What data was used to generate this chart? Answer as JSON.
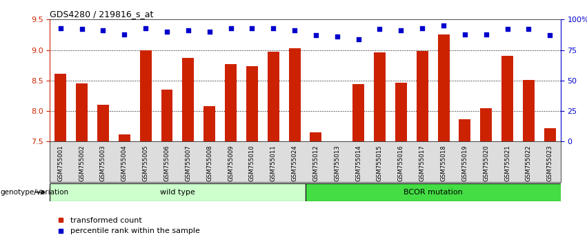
{
  "title": "GDS4280 / 219816_s_at",
  "samples": [
    "GSM755001",
    "GSM755002",
    "GSM755003",
    "GSM755004",
    "GSM755005",
    "GSM755006",
    "GSM755007",
    "GSM755008",
    "GSM755009",
    "GSM755010",
    "GSM755011",
    "GSM755024",
    "GSM755012",
    "GSM755013",
    "GSM755014",
    "GSM755015",
    "GSM755016",
    "GSM755017",
    "GSM755018",
    "GSM755019",
    "GSM755020",
    "GSM755021",
    "GSM755022",
    "GSM755023"
  ],
  "bar_values": [
    8.61,
    8.45,
    8.1,
    7.62,
    8.99,
    8.35,
    8.87,
    8.08,
    8.77,
    8.73,
    8.97,
    9.03,
    7.65,
    7.5,
    8.44,
    8.96,
    8.46,
    8.98,
    9.25,
    7.87,
    8.05,
    8.9,
    8.51,
    7.72
  ],
  "percentile_values": [
    93,
    92,
    91,
    88,
    93,
    90,
    91,
    90,
    93,
    93,
    93,
    91,
    87,
    86,
    84,
    92,
    91,
    93,
    95,
    88,
    88,
    92,
    92,
    87
  ],
  "bar_color": "#cc2200",
  "percentile_color": "#0000cc",
  "ylim_left": [
    7.5,
    9.5
  ],
  "ylim_right": [
    0,
    100
  ],
  "yticks_left": [
    7.5,
    8.0,
    8.5,
    9.0,
    9.5
  ],
  "yticks_right": [
    0,
    25,
    50,
    75,
    100
  ],
  "ytick_labels_right": [
    "0",
    "25",
    "50",
    "75",
    "100%"
  ],
  "grid_lines": [
    8.0,
    8.5,
    9.0
  ],
  "wild_type_count": 12,
  "wild_type_label": "wild type",
  "mutation_label": "BCOR mutation",
  "wild_type_color": "#ccffcc",
  "mutation_color": "#44dd44",
  "group_label": "genotype/variation",
  "legend_bar_label": "transformed count",
  "legend_dot_label": "percentile rank within the sample",
  "bar_width": 0.55,
  "xlabel_area_color": "#dddddd",
  "axis_left_color": "#cc2200",
  "axis_right_color": "#0000cc"
}
